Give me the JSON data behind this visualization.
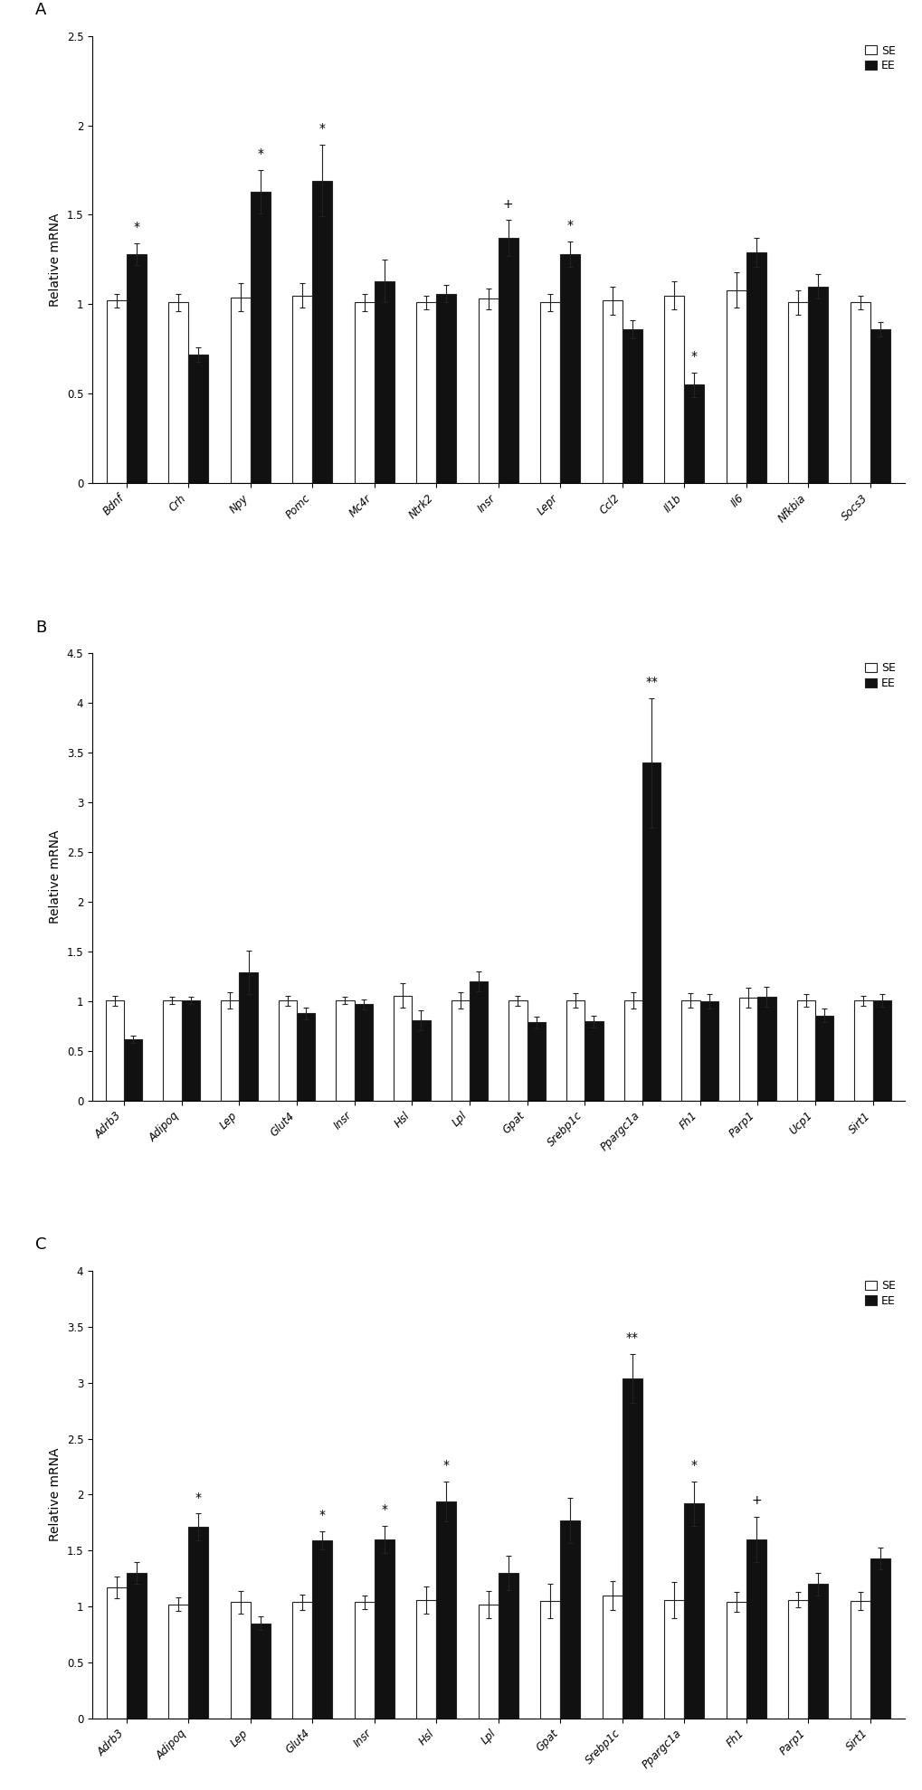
{
  "panel_A": {
    "categories": [
      "Bdnf",
      "Crh",
      "Npy",
      "Pomc",
      "Mc4r",
      "Ntrk2",
      "Insr",
      "Lepr",
      "Ccl2",
      "Il1b",
      "Il6",
      "Nfkbia",
      "Socs3"
    ],
    "SE_values": [
      1.02,
      1.01,
      1.04,
      1.05,
      1.01,
      1.01,
      1.03,
      1.01,
      1.02,
      1.05,
      1.08,
      1.01,
      1.01
    ],
    "EE_values": [
      1.28,
      0.72,
      1.63,
      1.69,
      1.13,
      1.06,
      1.37,
      1.28,
      0.86,
      0.55,
      1.29,
      1.1,
      0.86
    ],
    "SE_errors": [
      0.04,
      0.05,
      0.08,
      0.07,
      0.05,
      0.04,
      0.06,
      0.05,
      0.08,
      0.08,
      0.1,
      0.07,
      0.04
    ],
    "EE_errors": [
      0.06,
      0.04,
      0.12,
      0.2,
      0.12,
      0.05,
      0.1,
      0.07,
      0.05,
      0.07,
      0.08,
      0.07,
      0.04
    ],
    "annotations": [
      {
        "idx": 0,
        "text": "*",
        "on": "EE"
      },
      {
        "idx": 2,
        "text": "*",
        "on": "EE"
      },
      {
        "idx": 3,
        "text": "*",
        "on": "EE"
      },
      {
        "idx": 6,
        "text": "+",
        "on": "EE"
      },
      {
        "idx": 7,
        "text": "*",
        "on": "EE"
      },
      {
        "idx": 9,
        "text": "*",
        "on": "EE"
      }
    ],
    "ylim": [
      0,
      2.5
    ],
    "yticks": [
      0,
      0.5,
      1.0,
      1.5,
      2.0,
      2.5
    ],
    "ytick_labels": [
      "0",
      "0.5",
      "1",
      "1.5",
      "2",
      "2.5"
    ],
    "ylabel": "Relative mRNA",
    "panel_label": "A"
  },
  "panel_B": {
    "categories": [
      "Adrb3",
      "Adipoq",
      "Lep",
      "Glut4",
      "Insr",
      "Hsl",
      "Lpl",
      "Gpat",
      "Srebp1c",
      "Ppargc1a",
      "Fh1",
      "Parp1",
      "Ucp1",
      "Sirt1"
    ],
    "SE_values": [
      1.01,
      1.01,
      1.01,
      1.01,
      1.01,
      1.06,
      1.01,
      1.01,
      1.01,
      1.01,
      1.01,
      1.04,
      1.01,
      1.01
    ],
    "EE_values": [
      0.62,
      1.01,
      1.29,
      0.88,
      0.97,
      0.81,
      1.2,
      0.79,
      0.8,
      3.4,
      1.0,
      1.05,
      0.86,
      1.01
    ],
    "SE_errors": [
      0.05,
      0.04,
      0.08,
      0.05,
      0.04,
      0.12,
      0.08,
      0.05,
      0.07,
      0.08,
      0.07,
      0.1,
      0.06,
      0.05
    ],
    "EE_errors": [
      0.04,
      0.04,
      0.22,
      0.06,
      0.05,
      0.1,
      0.1,
      0.06,
      0.06,
      0.65,
      0.07,
      0.1,
      0.07,
      0.06
    ],
    "annotations": [
      {
        "idx": 9,
        "text": "**",
        "on": "EE"
      }
    ],
    "ylim": [
      0,
      4.5
    ],
    "yticks": [
      0,
      0.5,
      1.0,
      1.5,
      2.0,
      2.5,
      3.0,
      3.5,
      4.0,
      4.5
    ],
    "ytick_labels": [
      "0",
      "0.5",
      "1",
      "1.5",
      "2",
      "2.5",
      "3",
      "3.5",
      "4",
      "4.5"
    ],
    "ylabel": "Relative mRNA",
    "panel_label": "B"
  },
  "panel_C": {
    "categories": [
      "Adrb3",
      "Adipoq",
      "Lep",
      "Glut4",
      "Insr",
      "Hsl",
      "Lpl",
      "Gpat",
      "Srebp1c",
      "Ppargc1a",
      "Fh1",
      "Parp1",
      "Sirt1"
    ],
    "SE_values": [
      1.17,
      1.02,
      1.04,
      1.04,
      1.04,
      1.06,
      1.02,
      1.05,
      1.1,
      1.06,
      1.04,
      1.06,
      1.05
    ],
    "EE_values": [
      1.3,
      1.71,
      0.85,
      1.59,
      1.6,
      1.94,
      1.3,
      1.77,
      3.04,
      1.92,
      1.6,
      1.2,
      1.43
    ],
    "SE_errors": [
      0.1,
      0.06,
      0.1,
      0.07,
      0.06,
      0.12,
      0.12,
      0.15,
      0.13,
      0.16,
      0.09,
      0.07,
      0.08
    ],
    "EE_errors": [
      0.1,
      0.12,
      0.06,
      0.08,
      0.12,
      0.18,
      0.15,
      0.2,
      0.22,
      0.2,
      0.2,
      0.1,
      0.1
    ],
    "annotations": [
      {
        "idx": 1,
        "text": "*",
        "on": "EE"
      },
      {
        "idx": 3,
        "text": "*",
        "on": "EE"
      },
      {
        "idx": 4,
        "text": "*",
        "on": "EE"
      },
      {
        "idx": 5,
        "text": "*",
        "on": "EE"
      },
      {
        "idx": 8,
        "text": "**",
        "on": "EE"
      },
      {
        "idx": 9,
        "text": "*",
        "on": "EE"
      },
      {
        "idx": 10,
        "text": "+",
        "on": "EE"
      }
    ],
    "ylim": [
      0,
      4.0
    ],
    "yticks": [
      0,
      0.5,
      1.0,
      1.5,
      2.0,
      2.5,
      3.0,
      3.5,
      4.0
    ],
    "ytick_labels": [
      "0",
      "0.5",
      "1",
      "1.5",
      "2",
      "2.5",
      "3",
      "3.5",
      "4"
    ],
    "ylabel": "Relative mRNA",
    "panel_label": "C"
  },
  "bar_width": 0.32,
  "SE_color": "white",
  "EE_color": "#111111",
  "edge_color": "#222222",
  "error_color": "#222222",
  "annotation_fontsize": 10,
  "tick_label_fontsize": 8.5,
  "ylabel_fontsize": 10,
  "legend_fontsize": 9,
  "panel_label_fontsize": 13
}
